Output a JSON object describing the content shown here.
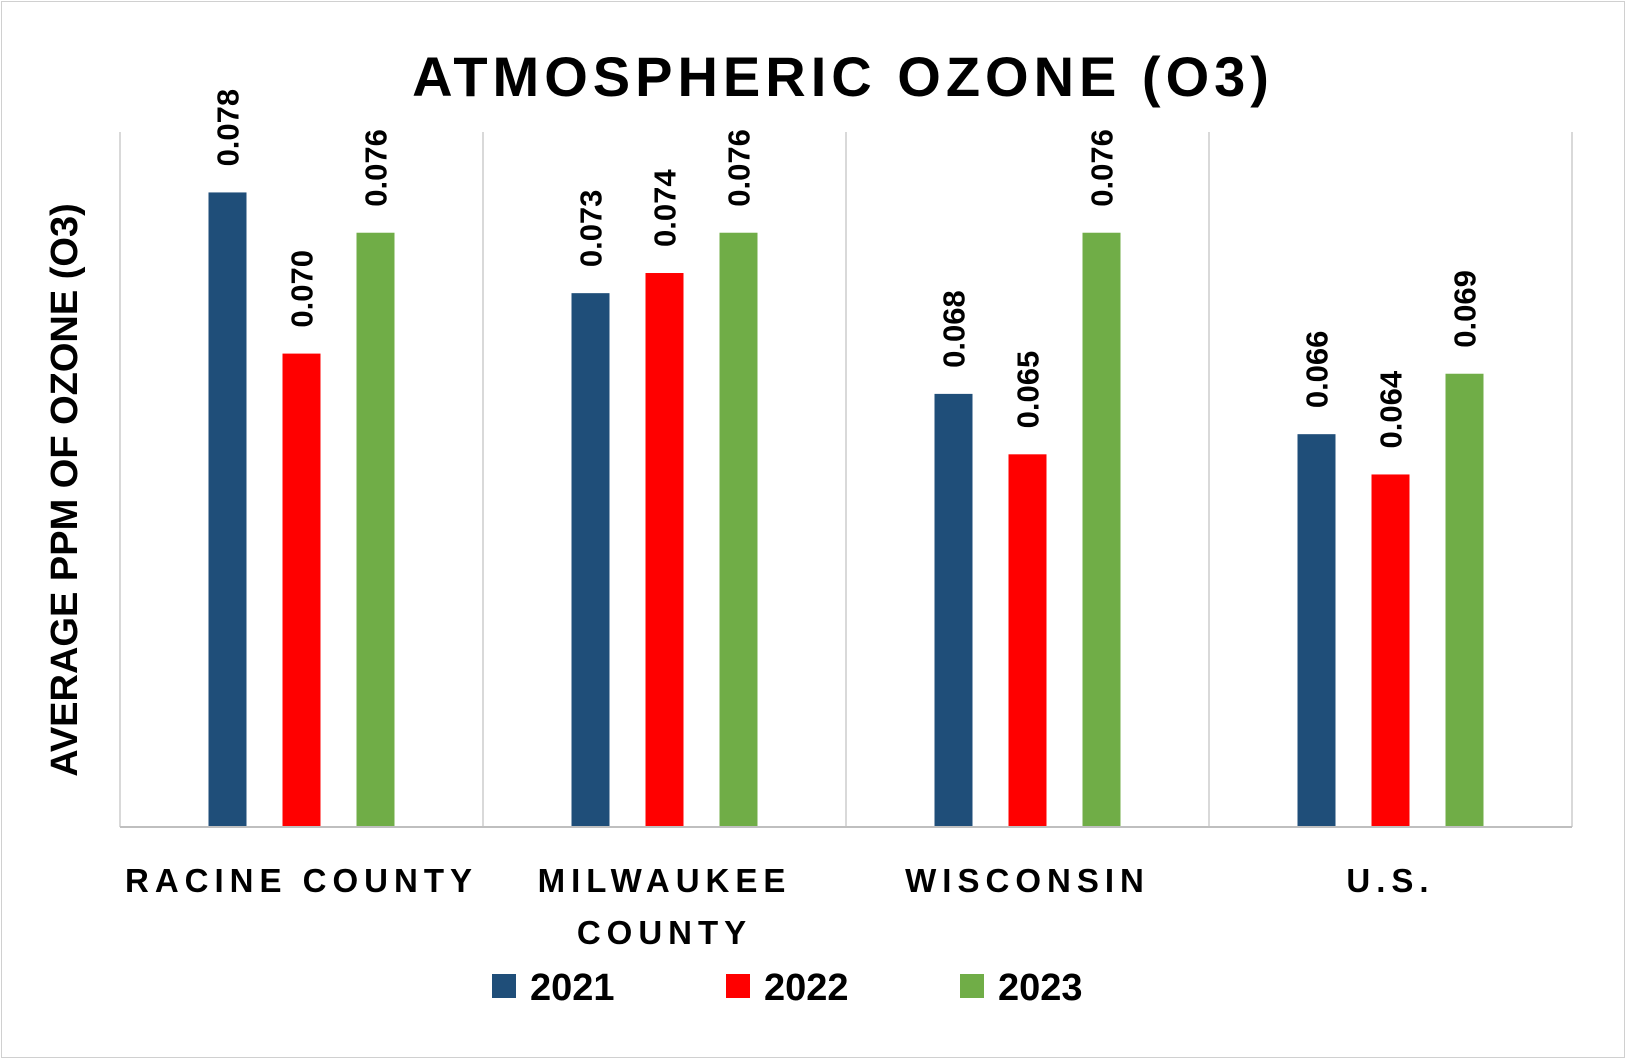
{
  "chart_data": {
    "type": "bar",
    "title": "ATMOSPHERIC OZONE (O3)",
    "ylabel": "AVERAGE PPM OF OZONE (O3)",
    "xlabel": "",
    "categories": [
      [
        "RACINE COUNTY"
      ],
      [
        "MILWAUKEE",
        "COUNTY"
      ],
      [
        "WISCONSIN"
      ],
      [
        "U.S."
      ]
    ],
    "series": [
      {
        "name": "2021",
        "color": "#1F4E79",
        "values": [
          0.078,
          0.073,
          0.068,
          0.066
        ]
      },
      {
        "name": "2022",
        "color": "#FF0000",
        "values": [
          0.07,
          0.074,
          0.065,
          0.064
        ]
      },
      {
        "name": "2023",
        "color": "#70AD47",
        "values": [
          0.076,
          0.076,
          0.076,
          0.069
        ]
      }
    ],
    "ylim": [
      0.0465,
      0.081
    ],
    "value_format_decimals": 3,
    "grid": "vertical category separators",
    "legend_position": "bottom"
  }
}
